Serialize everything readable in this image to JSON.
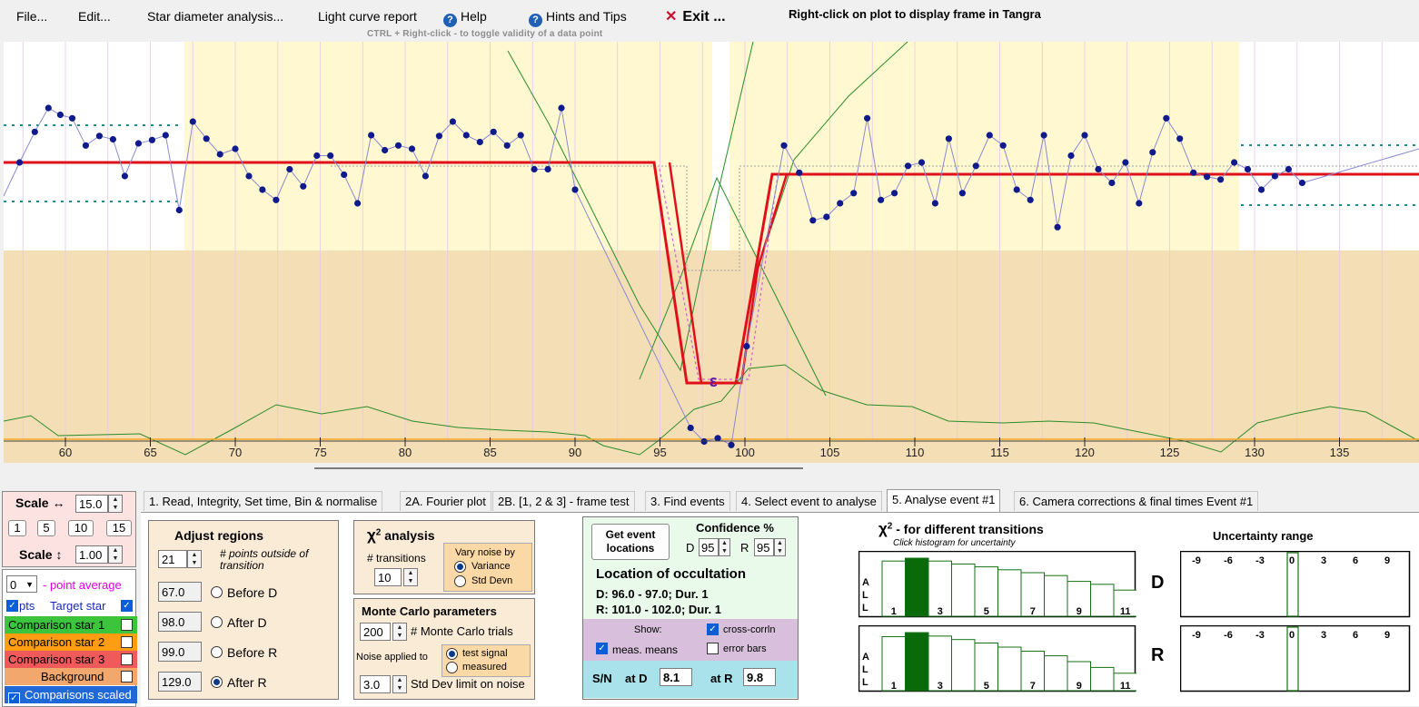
{
  "menu": {
    "file": "File...",
    "edit": "Edit...",
    "star_diameter": "Star diameter analysis...",
    "light_curve_report": "Light curve report",
    "help": "Help",
    "hints": "Hints and Tips",
    "exit": "Exit ...",
    "right_click_hint": "Right-click on plot to display frame in Tangra",
    "ctrl_hint": "CTRL + Right-click  -  to toggle validity of a data point"
  },
  "plot": {
    "x_ticks": [
      "60",
      "65",
      "70",
      "75",
      "80",
      "85",
      "90",
      "95",
      "100",
      "105",
      "110",
      "115",
      "120",
      "125",
      "130",
      "135"
    ],
    "marker_label": "ε",
    "colors": {
      "region_before": "#fff8d1",
      "region_lower": "#f4deb6",
      "data_line": "#8a8ad0",
      "data_point": "#0f1a8c",
      "model": "#e0101a",
      "green": "#2a8c2a",
      "baseline": "#f5a623",
      "teal": "#1e8a8a"
    },
    "points": [
      [
        57.3,
        0.6
      ],
      [
        58.2,
        1.05
      ],
      [
        59.0,
        1.4
      ],
      [
        59.7,
        1.3
      ],
      [
        60.4,
        1.25
      ],
      [
        61.2,
        0.85
      ],
      [
        62.0,
        0.99
      ],
      [
        62.8,
        0.94
      ],
      [
        63.5,
        0.4
      ],
      [
        64.3,
        0.88
      ],
      [
        65.1,
        0.93
      ],
      [
        65.9,
        1.0
      ],
      [
        66.7,
        -0.1
      ],
      [
        67.5,
        1.2
      ],
      [
        68.3,
        0.95
      ],
      [
        69.1,
        0.72
      ],
      [
        70.0,
        0.8
      ],
      [
        70.8,
        0.4
      ],
      [
        71.6,
        0.2
      ],
      [
        72.4,
        0.05
      ],
      [
        73.2,
        0.5
      ],
      [
        74.0,
        0.25
      ],
      [
        74.8,
        0.7
      ],
      [
        75.6,
        0.7
      ],
      [
        76.4,
        0.42
      ],
      [
        77.2,
        0.0
      ],
      [
        78.0,
        1.0
      ],
      [
        78.8,
        0.78
      ],
      [
        79.6,
        0.85
      ],
      [
        80.4,
        0.8
      ],
      [
        81.2,
        0.4
      ],
      [
        82.0,
        0.99
      ],
      [
        82.8,
        1.2
      ],
      [
        83.6,
        1.0
      ],
      [
        84.4,
        0.9
      ],
      [
        85.2,
        1.05
      ],
      [
        86.0,
        0.85
      ],
      [
        86.8,
        1.0
      ],
      [
        87.6,
        0.5
      ],
      [
        88.4,
        0.5
      ],
      [
        89.2,
        1.4
      ],
      [
        90.0,
        0.2
      ],
      [
        96.8,
        -3.3
      ],
      [
        97.6,
        -3.5
      ],
      [
        98.4,
        -3.45
      ],
      [
        99.2,
        -3.55
      ],
      [
        100.1,
        -2.1
      ],
      [
        102.3,
        0.85
      ],
      [
        103.2,
        0.45
      ],
      [
        104.0,
        -0.25
      ],
      [
        104.8,
        -0.2
      ],
      [
        105.6,
        0.0
      ],
      [
        106.4,
        0.15
      ],
      [
        107.2,
        1.25
      ],
      [
        108.0,
        0.05
      ],
      [
        108.8,
        0.15
      ],
      [
        109.6,
        0.55
      ],
      [
        110.4,
        0.6
      ],
      [
        111.2,
        0.0
      ],
      [
        112.0,
        0.95
      ],
      [
        112.8,
        0.15
      ],
      [
        113.6,
        0.55
      ],
      [
        114.4,
        1.0
      ],
      [
        115.2,
        0.85
      ],
      [
        116.0,
        0.2
      ],
      [
        116.8,
        0.05
      ],
      [
        117.6,
        1.0
      ],
      [
        118.4,
        -0.35
      ],
      [
        119.2,
        0.7
      ],
      [
        120.0,
        1.0
      ],
      [
        120.8,
        0.5
      ],
      [
        121.6,
        0.3
      ],
      [
        122.4,
        0.6
      ],
      [
        123.2,
        0.0
      ],
      [
        124.0,
        0.75
      ],
      [
        124.8,
        1.25
      ],
      [
        125.6,
        0.95
      ],
      [
        126.4,
        0.45
      ],
      [
        127.2,
        0.39
      ],
      [
        128.0,
        0.35
      ],
      [
        128.8,
        0.6
      ],
      [
        129.6,
        0.5
      ],
      [
        130.4,
        0.2
      ],
      [
        131.2,
        0.4
      ],
      [
        132.0,
        0.5
      ],
      [
        132.8,
        0.3
      ]
    ]
  },
  "scale": {
    "h_label": "Scale ↔",
    "h_value": "15.0",
    "presets": [
      "1",
      "5",
      "10",
      "15"
    ],
    "v_label": "Scale ↕",
    "v_value": "1.00"
  },
  "series": {
    "avg_value": "0",
    "avg_label": "- point average",
    "pts_label": "pts",
    "target_label": "Target star",
    "comp1": "Comparison star 1",
    "comp2": "Comparison star 2",
    "comp3": "Comparison star 3",
    "background": "Background",
    "comps_scaled": "Comparisons scaled",
    "colors": {
      "comp1": "#3cc43c",
      "comp2": "#ff9d12",
      "comp3": "#f05a5a",
      "background": "#f2a86c",
      "scaled": "#1e68d8"
    }
  },
  "tabs": [
    "1. Read, Integrity, Set time, Bin & normalise",
    "2A. Fourier plot",
    "2B. [1, 2 & 3] - frame test",
    "3. Find events",
    "4. Select event to analyse",
    "5. Analyse event #1",
    "6. Camera corrections & final times Event #1"
  ],
  "adjust": {
    "title": "Adjust regions",
    "points_value": "21",
    "points_label": "# points outside of transition",
    "before_d": "67.0",
    "after_d": "98.0",
    "before_r": "99.0",
    "after_r": "129.0",
    "before_d_label": "Before D",
    "after_d_label": "After D",
    "before_r_label": "Before R",
    "after_r_label": "After R"
  },
  "chi2": {
    "title": "analysis",
    "chi_symbol": "χ",
    "sup": "2",
    "transitions_label": "# transitions",
    "transitions_value": "10",
    "vary_label": "Vary noise by",
    "variance": "Variance",
    "std_devn": "Std Devn"
  },
  "monte": {
    "title": "Monte Carlo parameters",
    "trials_value": "200",
    "trials_label": "# Monte Carlo trials",
    "noise_label": "Noise applied to",
    "test_signal": "test signal",
    "measured": "measured",
    "std_value": "3.0",
    "std_label": "Std Dev limit on noise"
  },
  "event": {
    "get_locations": "Get event locations",
    "confidence_label": "Confidence %",
    "d_label": "D",
    "d_value": "95",
    "r_label": "R",
    "r_value": "95",
    "location_title": "Location of occultation",
    "d_line": "D: 96.0 - 97.0; Dur. 1",
    "r_line": "R: 101.0 - 102.0; Dur. 1",
    "show_label": "Show:",
    "cross_corr": "cross-corrln",
    "meas_means": "meas. means",
    "error_bars": "error bars",
    "sn_label": "S/N",
    "at_d": "at D",
    "sn_d": "8.1",
    "at_r": "at R",
    "sn_r": "9.8"
  },
  "histogram": {
    "title": "- for different transitions",
    "chi_symbol": "χ",
    "sup": "2",
    "subtitle": "Click histogram for uncertainty",
    "all_label": [
      "A",
      "L",
      "L"
    ],
    "x_labels": [
      "1",
      "3",
      "5",
      "7",
      "9",
      "11"
    ],
    "d_bars": [
      0.95,
      1.0,
      0.95,
      0.9,
      0.85,
      0.8,
      0.75,
      0.7,
      0.6,
      0.55,
      0.45
    ],
    "r_bars": [
      0.93,
      1.0,
      0.94,
      0.88,
      0.82,
      0.75,
      0.68,
      0.6,
      0.5,
      0.4,
      0.3
    ],
    "selected_index": 1,
    "d_label": "D",
    "r_label": "R"
  },
  "uncertainty": {
    "title": "Uncertainty range",
    "labels": [
      "-9",
      "-6",
      "-3",
      "0",
      "3",
      "6",
      "9"
    ]
  }
}
